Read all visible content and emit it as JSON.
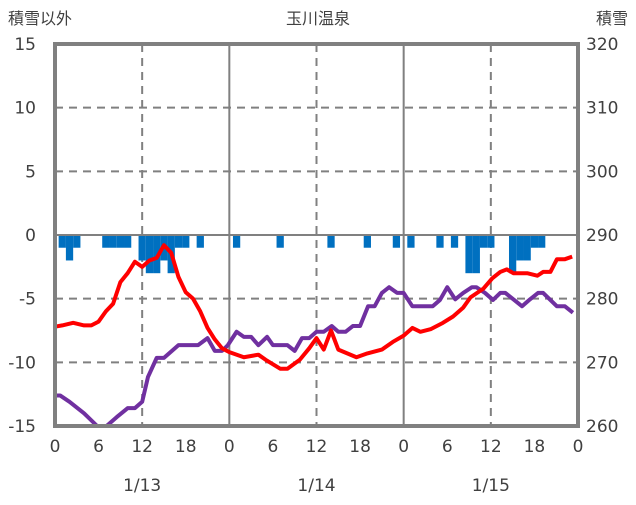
{
  "chart_data": {
    "type": "line",
    "title": "玉川温泉",
    "ylabel_left": "積雪以外",
    "ylabel_right": "積雪",
    "ylim_left": [
      -15,
      15
    ],
    "ylim_right": [
      260,
      320
    ],
    "yticks_left": [
      "15",
      "10",
      "5",
      "0",
      "-5",
      "-10",
      "-15"
    ],
    "yticks_right": [
      "320",
      "310",
      "300",
      "290",
      "280",
      "270",
      "260"
    ],
    "xlim_hours": [
      0,
      72
    ],
    "xticks": [
      "0",
      "6",
      "12",
      "18",
      "0",
      "6",
      "12",
      "18",
      "0",
      "6",
      "12",
      "18",
      "0"
    ],
    "date_labels": [
      {
        "label": "1/13",
        "hour": 12
      },
      {
        "label": "1/14",
        "hour": 36
      },
      {
        "label": "1/15",
        "hour": 60
      }
    ],
    "grid": true,
    "colors": {
      "temp": "#ff0000",
      "snow": "#7030a0",
      "bars": "#0070c0",
      "axis": "#808080"
    },
    "series": [
      {
        "name": "temperature",
        "axis": "left",
        "points": [
          [
            0,
            -7.2
          ],
          [
            1,
            -7.1
          ],
          [
            2.5,
            -6.9
          ],
          [
            4,
            -7.1
          ],
          [
            5,
            -7.1
          ],
          [
            6,
            -6.8
          ],
          [
            7,
            -6.0
          ],
          [
            8,
            -5.4
          ],
          [
            9,
            -3.7
          ],
          [
            10,
            -3.0
          ],
          [
            11,
            -2.1
          ],
          [
            12,
            -2.5
          ],
          [
            13,
            -2.0
          ],
          [
            14,
            -1.8
          ],
          [
            15,
            -0.8
          ],
          [
            16,
            -1.4
          ],
          [
            17,
            -3.3
          ],
          [
            18,
            -4.5
          ],
          [
            19,
            -5.0
          ],
          [
            20,
            -6.0
          ],
          [
            21,
            -7.3
          ],
          [
            22,
            -8.2
          ],
          [
            23,
            -8.9
          ],
          [
            24,
            -9.2
          ],
          [
            26,
            -9.6
          ],
          [
            28,
            -9.4
          ],
          [
            29,
            -9.8
          ],
          [
            31,
            -10.5
          ],
          [
            32,
            -10.5
          ],
          [
            33.7,
            -9.8
          ],
          [
            35,
            -8.9
          ],
          [
            36,
            -8.1
          ],
          [
            37,
            -9.0
          ],
          [
            38,
            -7.5
          ],
          [
            39,
            -9.0
          ],
          [
            41.5,
            -9.6
          ],
          [
            43,
            -9.3
          ],
          [
            45,
            -9.0
          ],
          [
            46.5,
            -8.4
          ],
          [
            48,
            -7.9
          ],
          [
            49.2,
            -7.3
          ],
          [
            50.3,
            -7.6
          ],
          [
            51.7,
            -7.4
          ],
          [
            53.4,
            -6.9
          ],
          [
            54.8,
            -6.4
          ],
          [
            56.2,
            -5.7
          ],
          [
            57.2,
            -4.9
          ],
          [
            59,
            -4.2
          ],
          [
            60.2,
            -3.4
          ],
          [
            61.3,
            -2.9
          ],
          [
            62.2,
            -2.7
          ],
          [
            63.1,
            -3.0
          ],
          [
            65,
            -3.0
          ],
          [
            66.4,
            -3.2
          ],
          [
            67.2,
            -2.9
          ],
          [
            68.2,
            -2.9
          ],
          [
            69.1,
            -1.9
          ],
          [
            70.2,
            -1.9
          ],
          [
            71.2,
            -1.7
          ]
        ]
      },
      {
        "name": "snow_depth",
        "axis": "right",
        "points": [
          [
            0,
            264.8
          ],
          [
            0.7,
            264.8
          ],
          [
            2,
            263.8
          ],
          [
            4,
            262.0
          ],
          [
            5.8,
            260
          ],
          [
            7.1,
            260
          ],
          [
            8.5,
            261.4
          ],
          [
            10,
            262.8
          ],
          [
            11,
            262.8
          ],
          [
            12,
            263.8
          ],
          [
            12.8,
            267.7
          ],
          [
            14,
            270.7
          ],
          [
            15,
            270.7
          ],
          [
            17,
            272.7
          ],
          [
            19.7,
            272.7
          ],
          [
            21,
            273.8
          ],
          [
            22,
            271.8
          ],
          [
            23,
            271.8
          ],
          [
            23.8,
            272.7
          ],
          [
            25,
            274.8
          ],
          [
            26,
            274.0
          ],
          [
            27,
            274.0
          ],
          [
            28,
            272.7
          ],
          [
            29.2,
            274.0
          ],
          [
            30,
            272.7
          ],
          [
            32,
            272.7
          ],
          [
            33,
            271.8
          ],
          [
            34,
            273.8
          ],
          [
            35,
            273.8
          ],
          [
            36,
            274.8
          ],
          [
            37,
            274.8
          ],
          [
            38.1,
            275.7
          ],
          [
            39,
            274.8
          ],
          [
            40,
            274.8
          ],
          [
            41,
            275.7
          ],
          [
            42,
            275.7
          ],
          [
            43.1,
            278.8
          ],
          [
            44,
            278.8
          ],
          [
            45,
            280.9
          ],
          [
            46,
            281.8
          ],
          [
            47.1,
            280.9
          ],
          [
            48,
            280.9
          ],
          [
            49.2,
            278.8
          ],
          [
            52,
            278.8
          ],
          [
            53,
            279.8
          ],
          [
            54,
            281.8
          ],
          [
            55.1,
            279.9
          ],
          [
            56.2,
            280.9
          ],
          [
            57.4,
            281.8
          ],
          [
            58,
            281.8
          ],
          [
            59.2,
            280.9
          ],
          [
            60.3,
            279.8
          ],
          [
            61.3,
            280.9
          ],
          [
            62,
            280.9
          ],
          [
            63.1,
            279.9
          ],
          [
            64.3,
            278.8
          ],
          [
            65.4,
            279.9
          ],
          [
            66.5,
            280.9
          ],
          [
            67.2,
            280.9
          ],
          [
            69.1,
            278.8
          ],
          [
            70.2,
            278.8
          ],
          [
            71.3,
            277.8
          ]
        ]
      },
      {
        "name": "snowfall",
        "type": "bar",
        "axis": "left",
        "points": [
          [
            1,
            -1
          ],
          [
            2,
            -2
          ],
          [
            3,
            -1
          ],
          [
            7,
            -1
          ],
          [
            8,
            -1
          ],
          [
            9,
            -1
          ],
          [
            10,
            -1
          ],
          [
            12,
            -2
          ],
          [
            13,
            -3
          ],
          [
            14,
            -3
          ],
          [
            15,
            -2
          ],
          [
            16,
            -3
          ],
          [
            17,
            -1
          ],
          [
            18,
            -1
          ],
          [
            20,
            -1
          ],
          [
            25,
            -1
          ],
          [
            31,
            -1
          ],
          [
            38,
            -1
          ],
          [
            43,
            -1
          ],
          [
            47,
            -1
          ],
          [
            49,
            -1
          ],
          [
            53,
            -1
          ],
          [
            55,
            -1
          ],
          [
            57,
            -3
          ],
          [
            58,
            -3
          ],
          [
            59,
            -1
          ],
          [
            60,
            -1
          ],
          [
            63,
            -3
          ],
          [
            64,
            -2
          ],
          [
            65,
            -2
          ],
          [
            66,
            -1
          ],
          [
            67,
            -1
          ]
        ]
      }
    ]
  }
}
